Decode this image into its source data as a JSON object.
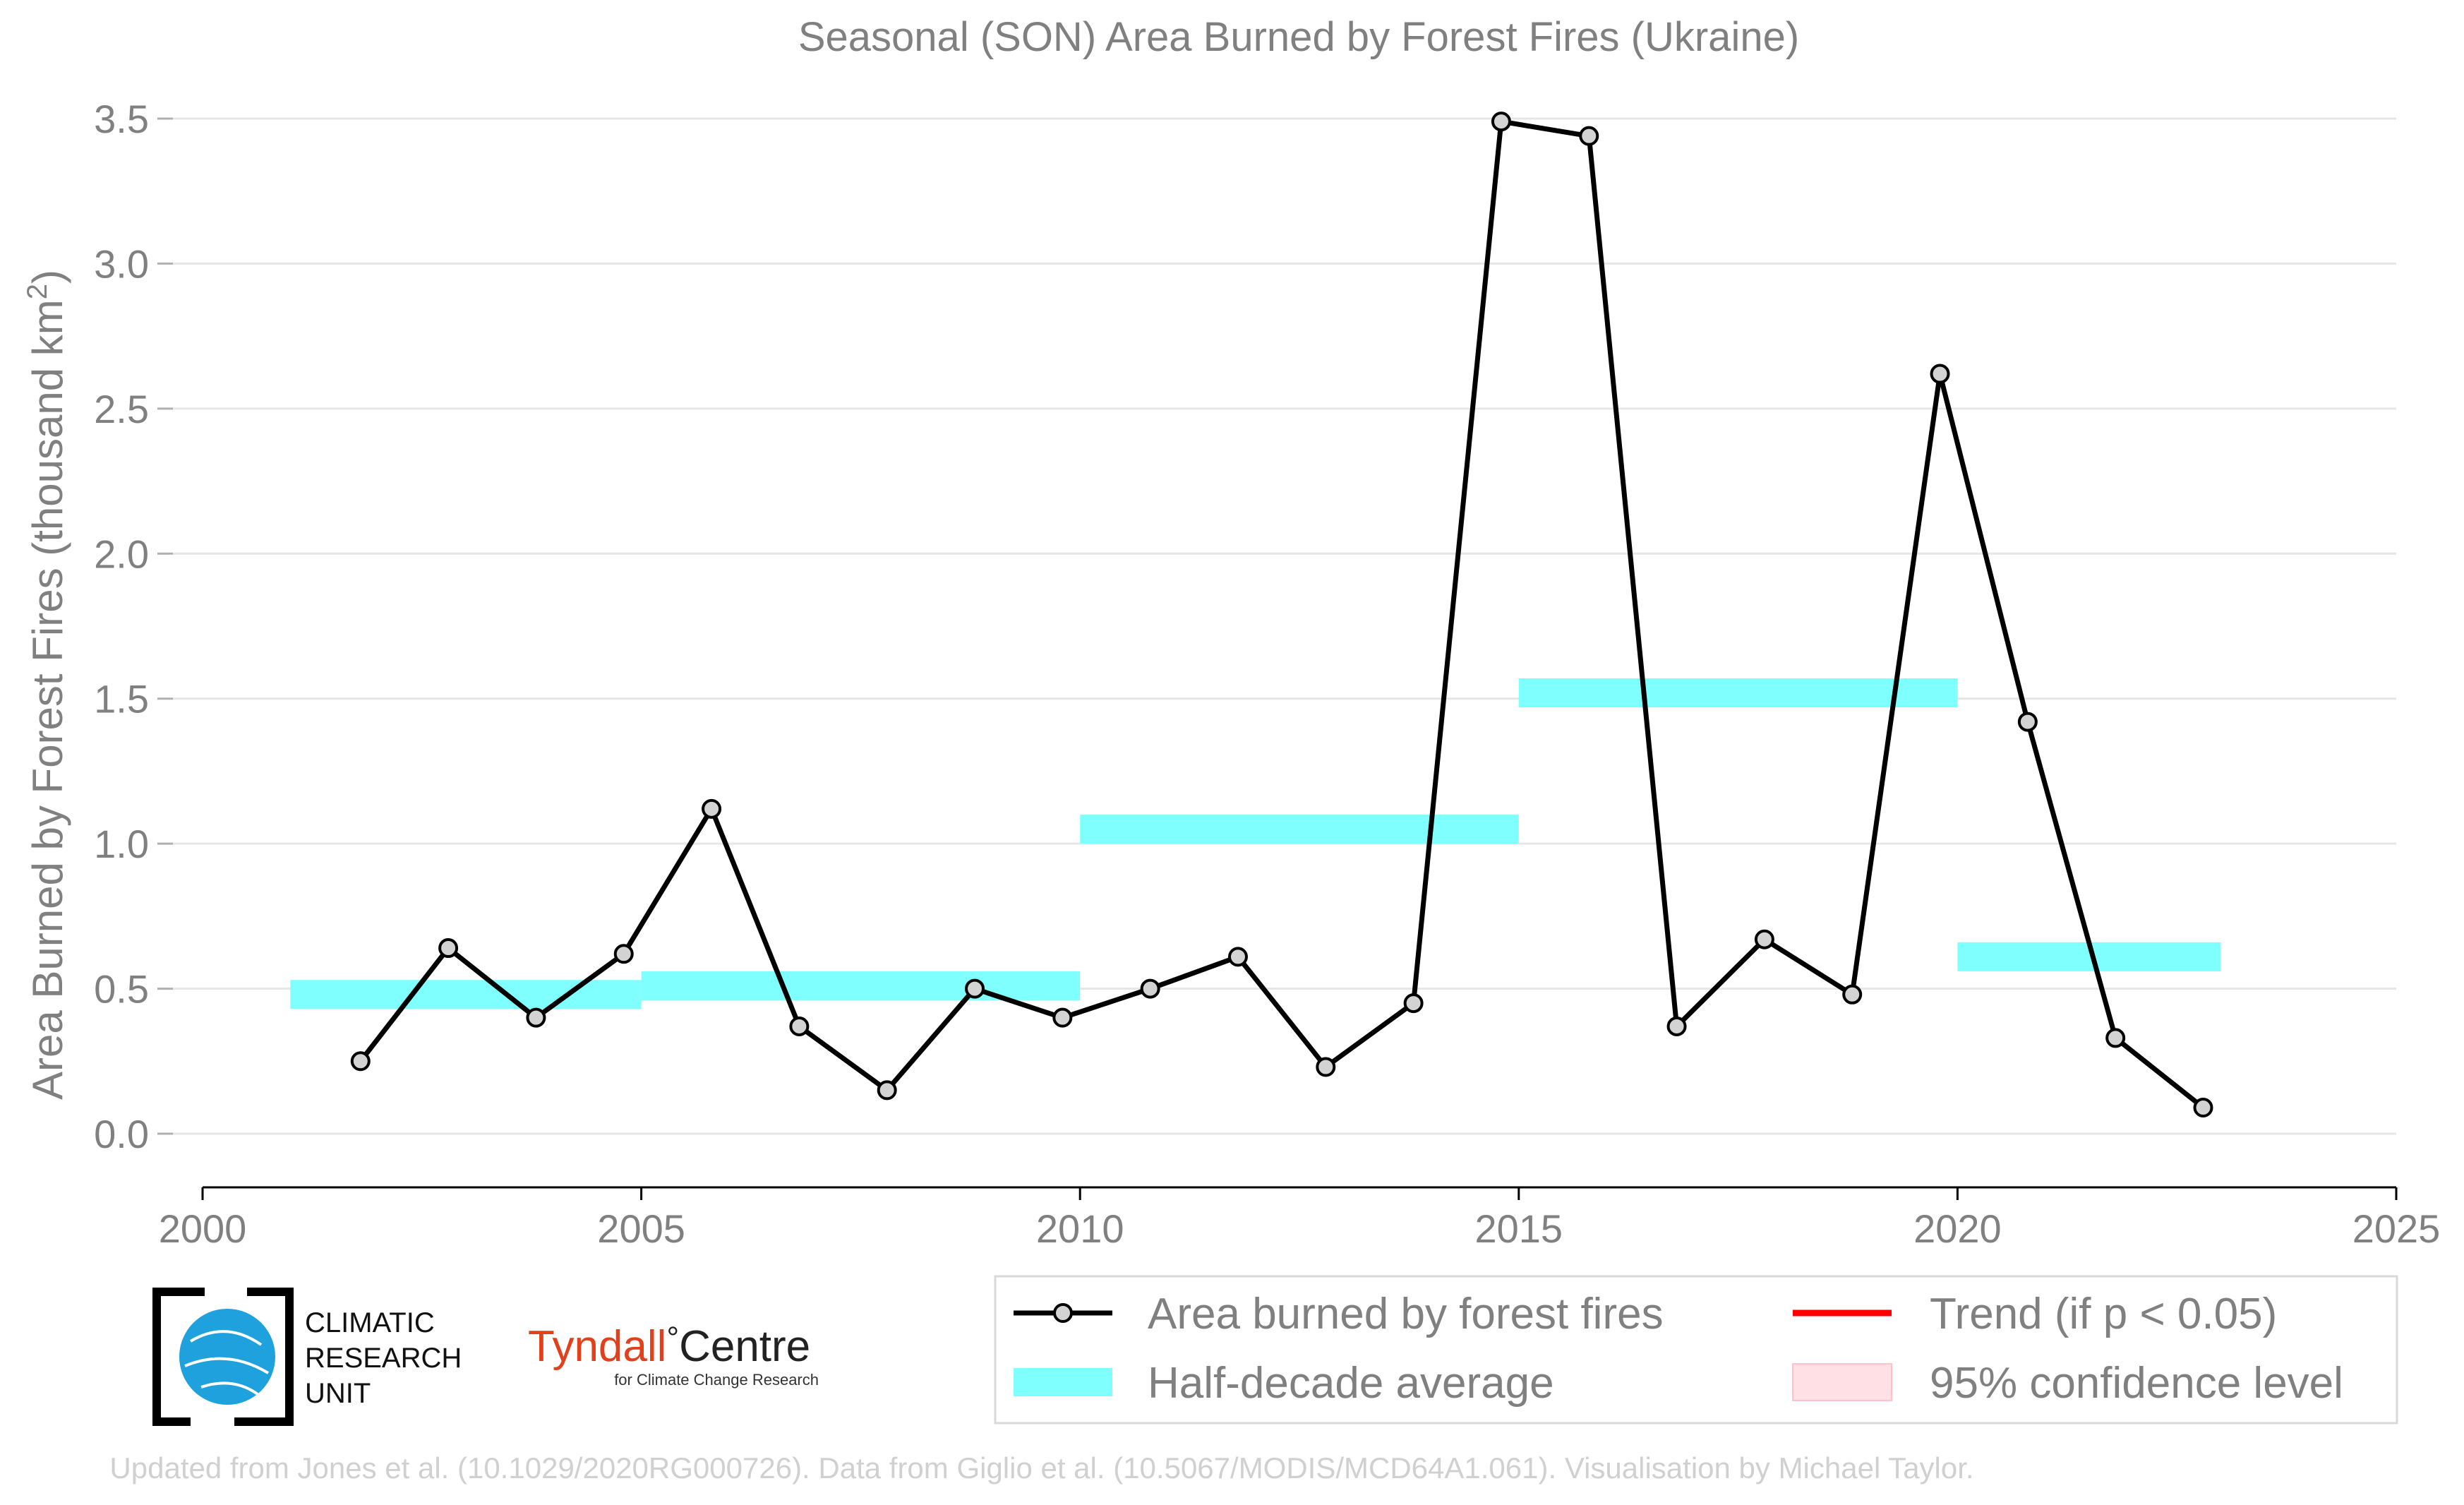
{
  "chart_data": {
    "type": "line",
    "title": "Seasonal (SON) Area Burned by Forest Fires (Ukraine)",
    "ylabel": "Area Burned by Forest Fires (thousand km",
    "ylabel_sup": "2",
    "ylabel_end": ")",
    "xlim": [
      2000,
      2025
    ],
    "ylim": [
      0,
      3.5
    ],
    "x_ticks": [
      2000,
      2005,
      2010,
      2015,
      2020,
      2025
    ],
    "x_tick_labels": [
      "2000",
      "2005",
      "2010",
      "2015",
      "2020",
      "2025"
    ],
    "y_ticks": [
      0,
      0.5,
      1.0,
      1.5,
      2.0,
      2.5,
      3.0,
      3.5
    ],
    "y_tick_labels": [
      "0.0",
      "0.5",
      "1.0",
      "1.5",
      "2.0",
      "2.5",
      "3.0",
      "3.5"
    ],
    "grid": "horizontal",
    "series": [
      {
        "name": "Area burned by forest fires",
        "color": "#000000",
        "x": [
          2001.8,
          2002.8,
          2003.8,
          2004.8,
          2005.8,
          2006.8,
          2007.8,
          2008.8,
          2009.8,
          2010.8,
          2011.8,
          2012.8,
          2013.8,
          2014.8,
          2015.8,
          2016.8,
          2017.8,
          2018.8,
          2019.8,
          2020.8,
          2021.8,
          2022.8
        ],
        "y": [
          0.25,
          0.64,
          0.4,
          0.62,
          1.12,
          0.37,
          0.15,
          0.5,
          0.4,
          0.5,
          0.61,
          0.23,
          0.45,
          3.49,
          3.44,
          0.37,
          0.67,
          0.48,
          2.62,
          1.42,
          0.33,
          0.09
        ]
      }
    ],
    "half_decade_average": {
      "name": "Half-decade average",
      "color": "#80ffff",
      "segments": [
        {
          "x_start": 2001,
          "x_end": 2005,
          "y": 0.48
        },
        {
          "x_start": 2005,
          "x_end": 2010,
          "y": 0.51
        },
        {
          "x_start": 2010,
          "x_end": 2015,
          "y": 1.05
        },
        {
          "x_start": 2015,
          "x_end": 2020,
          "y": 1.52
        },
        {
          "x_start": 2020,
          "x_end": 2023,
          "y": 0.61
        }
      ]
    },
    "legend": {
      "placement": "bottom-right",
      "entries": [
        {
          "label": "Area burned by forest fires",
          "kind": "line-marker",
          "color": "#000000"
        },
        {
          "label": "Trend (if p < 0.05)",
          "kind": "line",
          "color": "#ff0000"
        },
        {
          "label": "Half-decade average",
          "kind": "band",
          "color": "#80ffff"
        },
        {
          "label": "95% confidence level",
          "kind": "patch",
          "color": "#ffe0e4"
        }
      ]
    }
  },
  "logos": {
    "cru": [
      "CLIMATIC",
      "RESEARCH",
      "UNIT"
    ],
    "tyndall_name": "Tyndall",
    "tyndall_degree": "°",
    "tyndall_centre": "Centre",
    "tyndall_sub": "for Climate Change Research"
  },
  "footer": "Updated from Jones et al. (10.1029/2020RG000726). Data from Giglio et al. (10.5067/MODIS/MCD64A1.061). Visualisation by Michael Taylor."
}
